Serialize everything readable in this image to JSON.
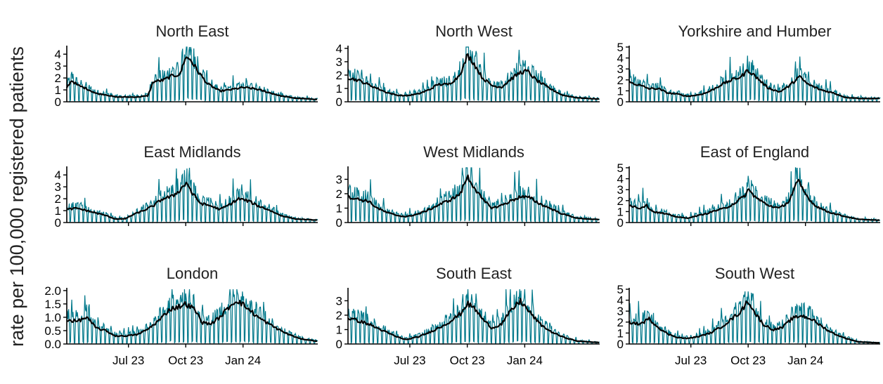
{
  "chart_data": {
    "type": "line",
    "ylabel": "rate per 100,000 registered patients",
    "xlabel": "",
    "x_ticks": [
      "Jul 23",
      "Oct 23",
      "Jan 24"
    ],
    "x_range": [
      "2023-03-24",
      "2024-04-30"
    ],
    "colors": {
      "daily": "#00788a",
      "smoothed": "#000000"
    },
    "series_kinds": [
      "daily",
      "7-day average"
    ],
    "panels": [
      {
        "title": "North East",
        "ylim": [
          0,
          4.6
        ],
        "y_ticks": [
          "0",
          "1",
          "2",
          "3",
          "4"
        ],
        "daily_peak": 4.6,
        "smoothed": [
          [
            "2023-03-24",
            1.2
          ],
          [
            "2023-04-01",
            1.8
          ],
          [
            "2023-04-10",
            1.4
          ],
          [
            "2023-04-25",
            1.1
          ],
          [
            "2023-05-10",
            0.7
          ],
          [
            "2023-05-25",
            0.6
          ],
          [
            "2023-06-10",
            0.4
          ],
          [
            "2023-06-25",
            0.4
          ],
          [
            "2023-07-15",
            0.4
          ],
          [
            "2023-08-01",
            0.5
          ],
          [
            "2023-08-10",
            1.7
          ],
          [
            "2023-08-25",
            1.8
          ],
          [
            "2023-09-10",
            2.2
          ],
          [
            "2023-09-22",
            2.3
          ],
          [
            "2023-09-30",
            3.7
          ],
          [
            "2023-10-08",
            3.6
          ],
          [
            "2023-10-20",
            2.6
          ],
          [
            "2023-11-05",
            1.5
          ],
          [
            "2023-11-25",
            0.9
          ],
          [
            "2023-12-10",
            1.0
          ],
          [
            "2024-01-01",
            1.2
          ],
          [
            "2024-01-20",
            1.1
          ],
          [
            "2024-02-10",
            0.8
          ],
          [
            "2024-03-01",
            0.5
          ],
          [
            "2024-03-25",
            0.3
          ],
          [
            "2024-04-30",
            0.2
          ]
        ]
      },
      {
        "title": "North West",
        "ylim": [
          0,
          4.1
        ],
        "y_ticks": [
          "0",
          "1",
          "2",
          "3",
          "4"
        ],
        "daily_peak": 4.1,
        "smoothed": [
          [
            "2023-03-24",
            1.8
          ],
          [
            "2023-04-10",
            1.6
          ],
          [
            "2023-04-25",
            1.3
          ],
          [
            "2023-05-10",
            1.0
          ],
          [
            "2023-05-25",
            0.7
          ],
          [
            "2023-06-10",
            0.5
          ],
          [
            "2023-06-25",
            0.45
          ],
          [
            "2023-07-15",
            0.6
          ],
          [
            "2023-08-01",
            0.9
          ],
          [
            "2023-08-15",
            1.3
          ],
          [
            "2023-09-01",
            1.3
          ],
          [
            "2023-09-15",
            1.8
          ],
          [
            "2023-09-25",
            2.6
          ],
          [
            "2023-10-01",
            3.5
          ],
          [
            "2023-10-10",
            3.0
          ],
          [
            "2023-10-25",
            1.8
          ],
          [
            "2023-11-10",
            1.2
          ],
          [
            "2023-11-25",
            1.1
          ],
          [
            "2023-12-10",
            1.7
          ],
          [
            "2023-12-25",
            2.2
          ],
          [
            "2024-01-05",
            2.3
          ],
          [
            "2024-01-20",
            1.6
          ],
          [
            "2024-02-10",
            1.0
          ],
          [
            "2024-03-01",
            0.5
          ],
          [
            "2024-03-25",
            0.3
          ],
          [
            "2024-04-30",
            0.2
          ]
        ]
      },
      {
        "title": "Yorkshire and Humber",
        "ylim": [
          0,
          5
        ],
        "y_ticks": [
          "0",
          "1",
          "2",
          "3",
          "4",
          "5"
        ],
        "daily_peak": 4.8,
        "smoothed": [
          [
            "2023-03-24",
            1.8
          ],
          [
            "2023-04-10",
            1.5
          ],
          [
            "2023-04-25",
            1.2
          ],
          [
            "2023-05-10",
            1.2
          ],
          [
            "2023-05-25",
            0.8
          ],
          [
            "2023-06-10",
            0.7
          ],
          [
            "2023-06-25",
            0.5
          ],
          [
            "2023-07-10",
            0.6
          ],
          [
            "2023-07-25",
            0.8
          ],
          [
            "2023-08-05",
            1.1
          ],
          [
            "2023-08-20",
            1.6
          ],
          [
            "2023-09-05",
            2.0
          ],
          [
            "2023-09-20",
            2.3
          ],
          [
            "2023-10-01",
            2.9
          ],
          [
            "2023-10-15",
            2.2
          ],
          [
            "2023-11-01",
            1.3
          ],
          [
            "2023-11-20",
            0.9
          ],
          [
            "2023-12-05",
            1.4
          ],
          [
            "2023-12-22",
            2.3
          ],
          [
            "2024-01-05",
            1.6
          ],
          [
            "2024-01-25",
            1.1
          ],
          [
            "2024-02-15",
            0.8
          ],
          [
            "2024-03-05",
            0.4
          ],
          [
            "2024-04-01",
            0.3
          ],
          [
            "2024-04-30",
            0.3
          ]
        ]
      },
      {
        "title": "East Midlands",
        "ylim": [
          0,
          4.6
        ],
        "y_ticks": [
          "0",
          "1",
          "2",
          "3",
          "4"
        ],
        "daily_peak": 4.6,
        "smoothed": [
          [
            "2023-03-24",
            1.1
          ],
          [
            "2023-04-10",
            1.2
          ],
          [
            "2023-04-25",
            1.0
          ],
          [
            "2023-05-10",
            0.8
          ],
          [
            "2023-05-25",
            0.6
          ],
          [
            "2023-06-10",
            0.3
          ],
          [
            "2023-06-25",
            0.3
          ],
          [
            "2023-07-10",
            0.7
          ],
          [
            "2023-07-25",
            1.0
          ],
          [
            "2023-08-10",
            1.4
          ],
          [
            "2023-08-25",
            2.0
          ],
          [
            "2023-09-10",
            2.2
          ],
          [
            "2023-09-25",
            2.9
          ],
          [
            "2023-10-02",
            3.4
          ],
          [
            "2023-10-12",
            2.4
          ],
          [
            "2023-10-25",
            1.6
          ],
          [
            "2023-11-10",
            1.4
          ],
          [
            "2023-11-25",
            1.1
          ],
          [
            "2023-12-10",
            1.5
          ],
          [
            "2023-12-25",
            2.0
          ],
          [
            "2024-01-10",
            1.8
          ],
          [
            "2024-01-25",
            1.4
          ],
          [
            "2024-02-10",
            1.1
          ],
          [
            "2024-03-01",
            0.6
          ],
          [
            "2024-03-25",
            0.3
          ],
          [
            "2024-04-30",
            0.2
          ]
        ]
      },
      {
        "title": "West Midlands",
        "ylim": [
          0,
          3.8
        ],
        "y_ticks": [
          "0",
          "1",
          "2",
          "3"
        ],
        "daily_peak": 3.8,
        "smoothed": [
          [
            "2023-03-24",
            1.8
          ],
          [
            "2023-04-10",
            1.6
          ],
          [
            "2023-04-25",
            1.5
          ],
          [
            "2023-05-10",
            1.0
          ],
          [
            "2023-05-25",
            0.7
          ],
          [
            "2023-06-10",
            0.5
          ],
          [
            "2023-06-25",
            0.4
          ],
          [
            "2023-07-15",
            0.6
          ],
          [
            "2023-08-01",
            0.9
          ],
          [
            "2023-08-20",
            1.3
          ],
          [
            "2023-09-05",
            1.6
          ],
          [
            "2023-09-20",
            2.0
          ],
          [
            "2023-10-01",
            3.2
          ],
          [
            "2023-10-10",
            2.6
          ],
          [
            "2023-10-25",
            1.6
          ],
          [
            "2023-11-10",
            1.0
          ],
          [
            "2023-11-25",
            1.2
          ],
          [
            "2023-12-10",
            1.5
          ],
          [
            "2023-12-25",
            1.8
          ],
          [
            "2024-01-10",
            1.7
          ],
          [
            "2024-01-25",
            1.3
          ],
          [
            "2024-02-10",
            1.0
          ],
          [
            "2024-03-01",
            0.6
          ],
          [
            "2024-03-25",
            0.3
          ],
          [
            "2024-04-30",
            0.2
          ]
        ]
      },
      {
        "title": "East of England",
        "ylim": [
          0,
          5
        ],
        "y_ticks": [
          "0",
          "1",
          "2",
          "3",
          "4",
          "5"
        ],
        "daily_peak": 5.0,
        "smoothed": [
          [
            "2023-03-24",
            1.6
          ],
          [
            "2023-04-10",
            1.3
          ],
          [
            "2023-04-20",
            1.6
          ],
          [
            "2023-05-01",
            1.0
          ],
          [
            "2023-05-20",
            0.8
          ],
          [
            "2023-06-10",
            0.5
          ],
          [
            "2023-06-25",
            0.4
          ],
          [
            "2023-07-10",
            0.6
          ],
          [
            "2023-07-25",
            0.8
          ],
          [
            "2023-08-10",
            1.1
          ],
          [
            "2023-08-25",
            1.3
          ],
          [
            "2023-09-10",
            1.8
          ],
          [
            "2023-09-25",
            2.4
          ],
          [
            "2023-10-01",
            3.0
          ],
          [
            "2023-10-15",
            2.2
          ],
          [
            "2023-11-01",
            1.6
          ],
          [
            "2023-11-20",
            1.3
          ],
          [
            "2023-12-05",
            1.9
          ],
          [
            "2023-12-20",
            3.8
          ],
          [
            "2024-01-01",
            2.6
          ],
          [
            "2024-01-15",
            1.6
          ],
          [
            "2024-02-05",
            1.0
          ],
          [
            "2024-03-01",
            0.6
          ],
          [
            "2024-03-25",
            0.3
          ],
          [
            "2024-04-30",
            0.2
          ]
        ]
      },
      {
        "title": "London",
        "ylim": [
          0,
          2.05
        ],
        "y_ticks": [
          "0.0",
          "0.5",
          "1.0",
          "1.5",
          "2.0"
        ],
        "daily_peak": 2.05,
        "smoothed": [
          [
            "2023-03-24",
            0.9
          ],
          [
            "2023-04-10",
            0.85
          ],
          [
            "2023-04-25",
            1.0
          ],
          [
            "2023-05-10",
            0.6
          ],
          [
            "2023-05-25",
            0.5
          ],
          [
            "2023-06-10",
            0.3
          ],
          [
            "2023-06-25",
            0.3
          ],
          [
            "2023-07-15",
            0.35
          ],
          [
            "2023-08-01",
            0.55
          ],
          [
            "2023-08-20",
            0.9
          ],
          [
            "2023-09-05",
            1.3
          ],
          [
            "2023-09-20",
            1.4
          ],
          [
            "2023-10-01",
            1.5
          ],
          [
            "2023-10-15",
            1.3
          ],
          [
            "2023-10-28",
            0.8
          ],
          [
            "2023-11-10",
            0.75
          ],
          [
            "2023-11-25",
            1.0
          ],
          [
            "2023-12-10",
            1.4
          ],
          [
            "2023-12-22",
            1.65
          ],
          [
            "2024-01-05",
            1.4
          ],
          [
            "2024-01-25",
            1.0
          ],
          [
            "2024-02-15",
            0.7
          ],
          [
            "2024-03-10",
            0.4
          ],
          [
            "2024-04-01",
            0.2
          ],
          [
            "2024-04-30",
            0.1
          ]
        ]
      },
      {
        "title": "South East",
        "ylim": [
          0,
          3.8
        ],
        "y_ticks": [
          "0",
          "1",
          "2",
          "3"
        ],
        "daily_peak": 3.8,
        "smoothed": [
          [
            "2023-03-24",
            1.8
          ],
          [
            "2023-04-10",
            1.6
          ],
          [
            "2023-04-25",
            1.4
          ],
          [
            "2023-05-10",
            1.1
          ],
          [
            "2023-05-25",
            0.8
          ],
          [
            "2023-06-10",
            0.5
          ],
          [
            "2023-06-25",
            0.3
          ],
          [
            "2023-07-15",
            0.5
          ],
          [
            "2023-08-01",
            0.8
          ],
          [
            "2023-08-20",
            1.2
          ],
          [
            "2023-09-05",
            1.6
          ],
          [
            "2023-09-20",
            2.1
          ],
          [
            "2023-10-01",
            2.8
          ],
          [
            "2023-10-12",
            2.5
          ],
          [
            "2023-10-28",
            1.6
          ],
          [
            "2023-11-10",
            1.1
          ],
          [
            "2023-11-25",
            1.4
          ],
          [
            "2023-12-10",
            2.3
          ],
          [
            "2023-12-25",
            3.0
          ],
          [
            "2024-01-05",
            2.4
          ],
          [
            "2024-01-25",
            1.4
          ],
          [
            "2024-02-10",
            0.9
          ],
          [
            "2024-03-01",
            0.5
          ],
          [
            "2024-03-25",
            0.2
          ],
          [
            "2024-04-30",
            0.1
          ]
        ]
      },
      {
        "title": "South West",
        "ylim": [
          0,
          5
        ],
        "y_ticks": [
          "0",
          "1",
          "2",
          "3",
          "4",
          "5"
        ],
        "daily_peak": 4.8,
        "smoothed": [
          [
            "2023-03-24",
            2.0
          ],
          [
            "2023-04-10",
            1.8
          ],
          [
            "2023-04-25",
            2.3
          ],
          [
            "2023-05-10",
            1.5
          ],
          [
            "2023-05-25",
            0.9
          ],
          [
            "2023-06-10",
            0.6
          ],
          [
            "2023-06-25",
            0.5
          ],
          [
            "2023-07-15",
            0.7
          ],
          [
            "2023-08-01",
            1.0
          ],
          [
            "2023-08-20",
            1.6
          ],
          [
            "2023-09-05",
            2.3
          ],
          [
            "2023-09-20",
            3.0
          ],
          [
            "2023-10-01",
            4.0
          ],
          [
            "2023-10-10",
            3.0
          ],
          [
            "2023-10-25",
            1.8
          ],
          [
            "2023-11-10",
            1.3
          ],
          [
            "2023-11-25",
            1.5
          ],
          [
            "2023-12-10",
            2.3
          ],
          [
            "2023-12-25",
            2.6
          ],
          [
            "2024-01-10",
            2.3
          ],
          [
            "2024-01-25",
            1.7
          ],
          [
            "2024-02-10",
            1.1
          ],
          [
            "2024-03-01",
            0.6
          ],
          [
            "2024-03-25",
            0.2
          ],
          [
            "2024-04-30",
            0.1
          ]
        ]
      }
    ]
  }
}
